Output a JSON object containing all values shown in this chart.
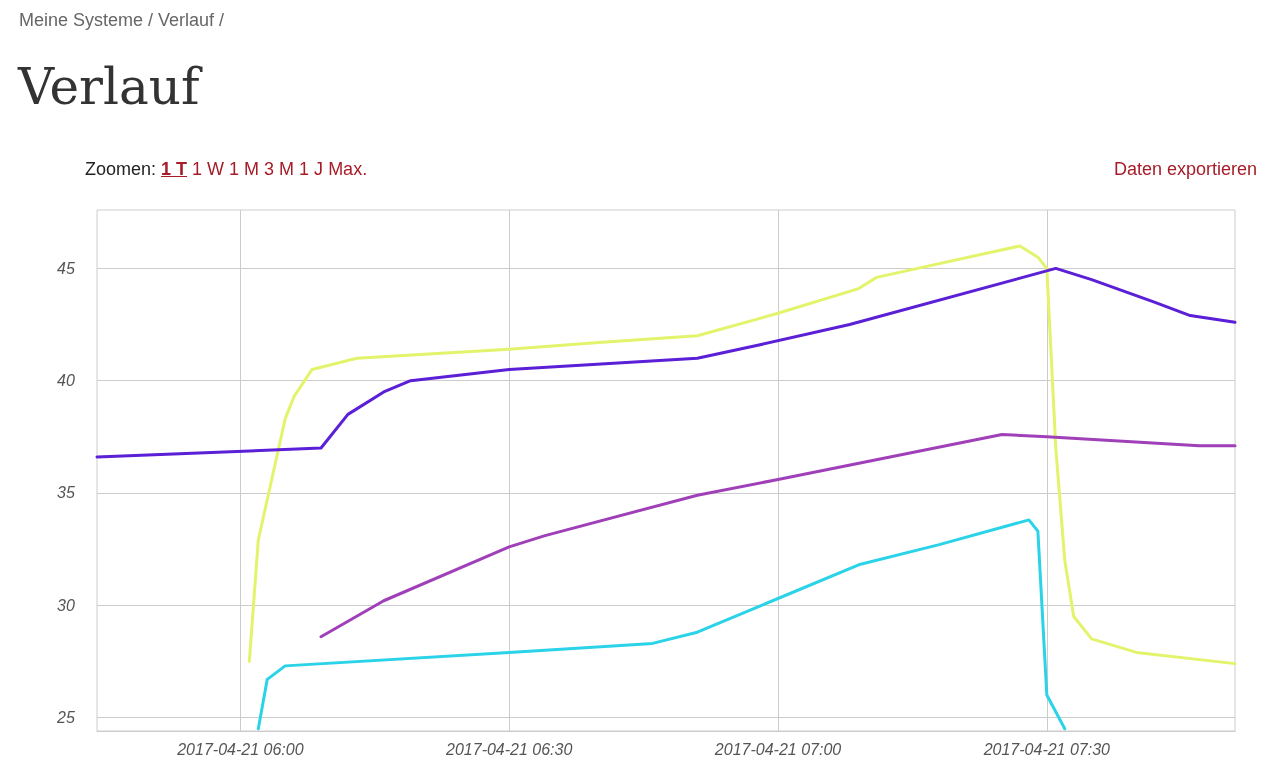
{
  "chart_data": {
    "type": "line",
    "title": "Verlauf",
    "annotations": [
      "Meine Systeme / Verlauf /",
      "Zoomen:",
      "1 T",
      "1 W",
      "1 M",
      "3 M",
      "1 J",
      "Max.",
      "Daten exportieren"
    ],
    "xlim": [
      "2017-04-21T05:44",
      "2017-04-21T07:51"
    ],
    "xticks": [
      {
        "value": "2017-04-21T06:00",
        "label": "2017-04-21 06:00"
      },
      {
        "value": "2017-04-21T06:30",
        "label": "2017-04-21 06:30"
      },
      {
        "value": "2017-04-21T07:00",
        "label": "2017-04-21 07:00"
      },
      {
        "value": "2017-04-21T07:30",
        "label": "2017-04-21 07:30"
      }
    ],
    "ylim": [
      24.4,
      47.6
    ],
    "yticks": [
      25,
      30,
      35,
      40,
      45
    ],
    "grid": true,
    "marker": "none",
    "line_style": "solid",
    "series": [
      {
        "color": "#e3f36b",
        "x": [
          "2017-04-21T06:01",
          "2017-04-21T06:02",
          "2017-04-21T06:04",
          "2017-04-21T06:05",
          "2017-04-21T06:06",
          "2017-04-21T06:08",
          "2017-04-21T06:13",
          "2017-04-21T06:30",
          "2017-04-21T06:40",
          "2017-04-21T06:51",
          "2017-04-21T07:00",
          "2017-04-21T07:09",
          "2017-04-21T07:11",
          "2017-04-21T07:27",
          "2017-04-21T07:29",
          "2017-04-21T07:30",
          "2017-04-21T07:31",
          "2017-04-21T07:32",
          "2017-04-21T07:33",
          "2017-04-21T07:35",
          "2017-04-21T07:40",
          "2017-04-21T07:51"
        ],
        "values": [
          27.5,
          32.9,
          36.5,
          38.3,
          39.3,
          40.5,
          41.0,
          41.4,
          41.7,
          42.0,
          43.0,
          44.1,
          44.6,
          46.0,
          45.5,
          45.0,
          37.0,
          32.0,
          29.5,
          28.5,
          27.9,
          27.4
        ]
      },
      {
        "color": "#5a1fd6",
        "x": [
          "2017-04-21T05:44",
          "2017-04-21T06:09",
          "2017-04-21T06:12",
          "2017-04-21T06:16",
          "2017-04-21T06:19",
          "2017-04-21T06:30",
          "2017-04-21T06:51",
          "2017-04-21T06:58",
          "2017-04-21T07:08",
          "2017-04-21T07:31",
          "2017-04-21T07:35",
          "2017-04-21T07:42",
          "2017-04-21T07:46",
          "2017-04-21T07:51"
        ],
        "values": [
          36.6,
          37.0,
          38.5,
          39.5,
          40.0,
          40.5,
          41.0,
          41.6,
          42.5,
          45.0,
          44.5,
          43.5,
          42.9,
          42.6
        ]
      },
      {
        "color": "#a040b8",
        "x": [
          "2017-04-21T06:09",
          "2017-04-21T06:16",
          "2017-04-21T06:30",
          "2017-04-21T06:34",
          "2017-04-21T06:51",
          "2017-04-21T07:00",
          "2017-04-21T07:25",
          "2017-04-21T07:30",
          "2017-04-21T07:47",
          "2017-04-21T07:51"
        ],
        "values": [
          28.6,
          30.2,
          32.6,
          33.1,
          34.9,
          35.6,
          37.6,
          37.5,
          37.1,
          37.1
        ]
      },
      {
        "color": "#2ad3e8",
        "x": [
          "2017-04-21T06:02",
          "2017-04-21T06:03",
          "2017-04-21T06:05",
          "2017-04-21T06:30",
          "2017-04-21T06:46",
          "2017-04-21T06:51",
          "2017-04-21T07:00",
          "2017-04-21T07:09",
          "2017-04-21T07:18",
          "2017-04-21T07:28",
          "2017-04-21T07:29",
          "2017-04-21T07:30",
          "2017-04-21T07:32"
        ],
        "values": [
          24.5,
          26.7,
          27.3,
          27.9,
          28.3,
          28.8,
          30.3,
          31.8,
          32.7,
          33.8,
          33.3,
          26.0,
          24.5
        ]
      }
    ]
  }
}
